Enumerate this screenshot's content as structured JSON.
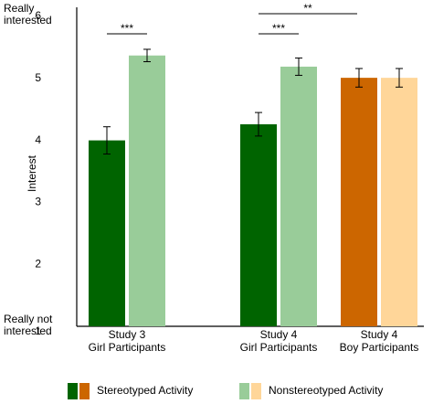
{
  "chart_data": {
    "type": "bar",
    "y_label": "Interest",
    "y_top_label": [
      "Really",
      "interested"
    ],
    "y_bottom_label": [
      "Really not",
      "interested"
    ],
    "categories": [
      [
        "Study 3",
        "Girl Participants"
      ],
      [
        "Study 4",
        "Girl Participants"
      ],
      [
        "Study 4",
        "Boy Participants"
      ]
    ],
    "series": [
      {
        "name": "Stereotyped Activity",
        "colors": [
          "#006400",
          "#006400",
          "#cc6600"
        ],
        "values": [
          4.0,
          4.26,
          5.01
        ],
        "errors": [
          0.22,
          0.19,
          0.15
        ]
      },
      {
        "name": "Nonstereotyped Activity",
        "colors": [
          "#99cc99",
          "#99cc99",
          "#ffd699"
        ],
        "values": [
          5.37,
          5.19,
          5.01
        ],
        "errors": [
          0.1,
          0.14,
          0.15
        ]
      }
    ],
    "annotations": [
      "***",
      "**",
      "***"
    ],
    "ylim": [
      1,
      6
    ],
    "yticks": [
      1,
      2,
      3,
      4,
      5,
      6
    ]
  }
}
